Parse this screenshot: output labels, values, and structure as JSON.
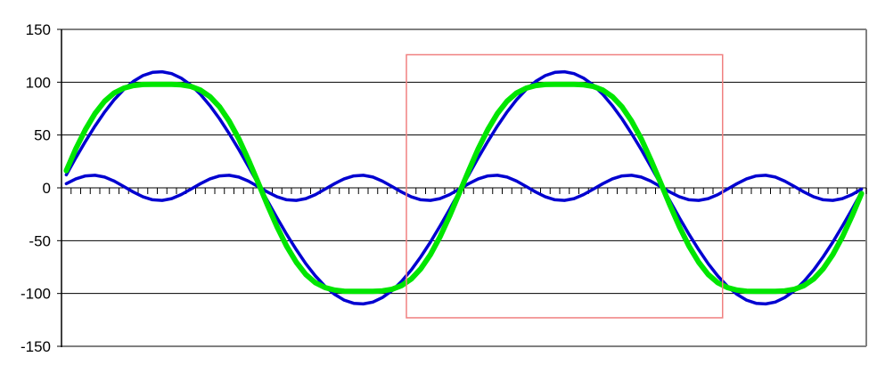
{
  "chart_data": {
    "type": "line",
    "title": "",
    "xlabel": "",
    "ylabel": "",
    "ylim": [
      -150,
      150
    ],
    "yticks": [
      "150",
      "100",
      "50",
      "0",
      "-50",
      "-100",
      "-150"
    ],
    "ytick_values": [
      150,
      100,
      50,
      0,
      -50,
      -100,
      -150
    ],
    "grid": "horizontal major gridlines",
    "x_ticks_unlabeled": true,
    "legend": "none",
    "series": [
      {
        "color": "#0000D0",
        "values": [
          12.3,
          28.5,
          44,
          58.5,
          71.8,
          83.4,
          93.1,
          100.8,
          106.3,
          109.3,
          109.9,
          108.1,
          103.8,
          97.3,
          88.5,
          77.8,
          65.3,
          51.4,
          36.3,
          20.4,
          4.1,
          -12.3,
          -28.5,
          -44,
          -58.5,
          -71.8,
          -83.4,
          -93.1,
          -100.8,
          -106.3,
          -109.3,
          -109.9,
          -108.1,
          -103.8,
          -97.3,
          -88.5,
          -77.8,
          -65.3,
          -51.4,
          -36.3,
          -20.4,
          -4.1,
          12.3,
          28.5,
          44,
          58.5,
          71.8,
          83.4,
          93.1,
          100.8,
          106.3,
          109.3,
          109.9,
          108.1,
          103.8,
          97.3,
          88.5,
          77.8,
          65.3,
          51.4,
          36.3,
          20.4,
          4.1,
          -12.3,
          -28.5,
          -44,
          -58.5,
          -71.8,
          -83.4,
          -93.1,
          -100.8,
          -106.3,
          -109.3,
          -109.9,
          -108.1,
          -103.8,
          -97.3,
          -88.5,
          -77.8,
          -65.3,
          -51.4,
          -36.3,
          -20.4,
          -4.1
        ]
      },
      {
        "color": "#0000D0",
        "values": [
          4,
          8.5,
          11.3,
          11.9,
          10.2,
          6.4,
          1.3,
          -4,
          -8.5,
          -11.3,
          -11.9,
          -10.2,
          -6.3,
          -1.3,
          4,
          8.5,
          11.3,
          11.9,
          10.2,
          6.4,
          1.3,
          -4,
          -8.5,
          -11.3,
          -11.9,
          -10.2,
          -6.4,
          -1.3,
          4,
          8.5,
          11.3,
          11.9,
          10.2,
          6.3,
          1.3,
          -4,
          -8.5,
          -11.3,
          -11.9,
          -10.2,
          -6.4,
          -1.3,
          4,
          8.5,
          11.3,
          11.9,
          10.2,
          6.4,
          1.3,
          -4,
          -8.5,
          -11.3,
          -11.9,
          -10.2,
          -6.3,
          -1.3,
          4,
          8.5,
          11.3,
          11.9,
          10.2,
          6.4,
          1.3,
          -4,
          -8.5,
          -11.3,
          -11.9,
          -10.2,
          -6.4,
          -1.3,
          4,
          8.5,
          11.3,
          11.9,
          10.2,
          6.3,
          1.3,
          -4,
          -8.5,
          -11.3,
          -11.9,
          -10.2,
          -6.4,
          -1.3
        ]
      },
      {
        "color": "#00E600",
        "values": [
          16.3,
          37,
          55.3,
          70.4,
          82,
          89.8,
          94.4,
          96.8,
          97.8,
          98,
          98,
          97.9,
          97.5,
          96,
          92.5,
          86.3,
          76.6,
          63.3,
          46.5,
          26.8,
          5.4,
          -16.3,
          -37,
          -55.3,
          -70.4,
          -82,
          -89.8,
          -94.4,
          -96.8,
          -97.8,
          -98,
          -98,
          -97.9,
          -97.5,
          -96,
          -92.5,
          -86.3,
          -76.6,
          -63.3,
          -46.5,
          -26.8,
          -5.4,
          16.3,
          37,
          55.3,
          70.4,
          82,
          89.8,
          94.4,
          96.8,
          97.8,
          98,
          98,
          97.9,
          97.5,
          96,
          92.5,
          86.3,
          76.6,
          63.3,
          46.5,
          26.8,
          5.4,
          -16.3,
          -37,
          -55.3,
          -70.4,
          -82,
          -89.8,
          -94.4,
          -96.8,
          -97.8,
          -98,
          -98,
          -97.9,
          -97.5,
          -96,
          -92.5,
          -86.3,
          -76.6,
          -63.3,
          -46.5,
          -26.8,
          -5.4
        ]
      }
    ],
    "annotations": [
      {
        "type": "rectangle",
        "color": "#F08080",
        "x_range": [
          36,
          69
        ],
        "y_range": [
          -123,
          126
        ]
      }
    ]
  }
}
